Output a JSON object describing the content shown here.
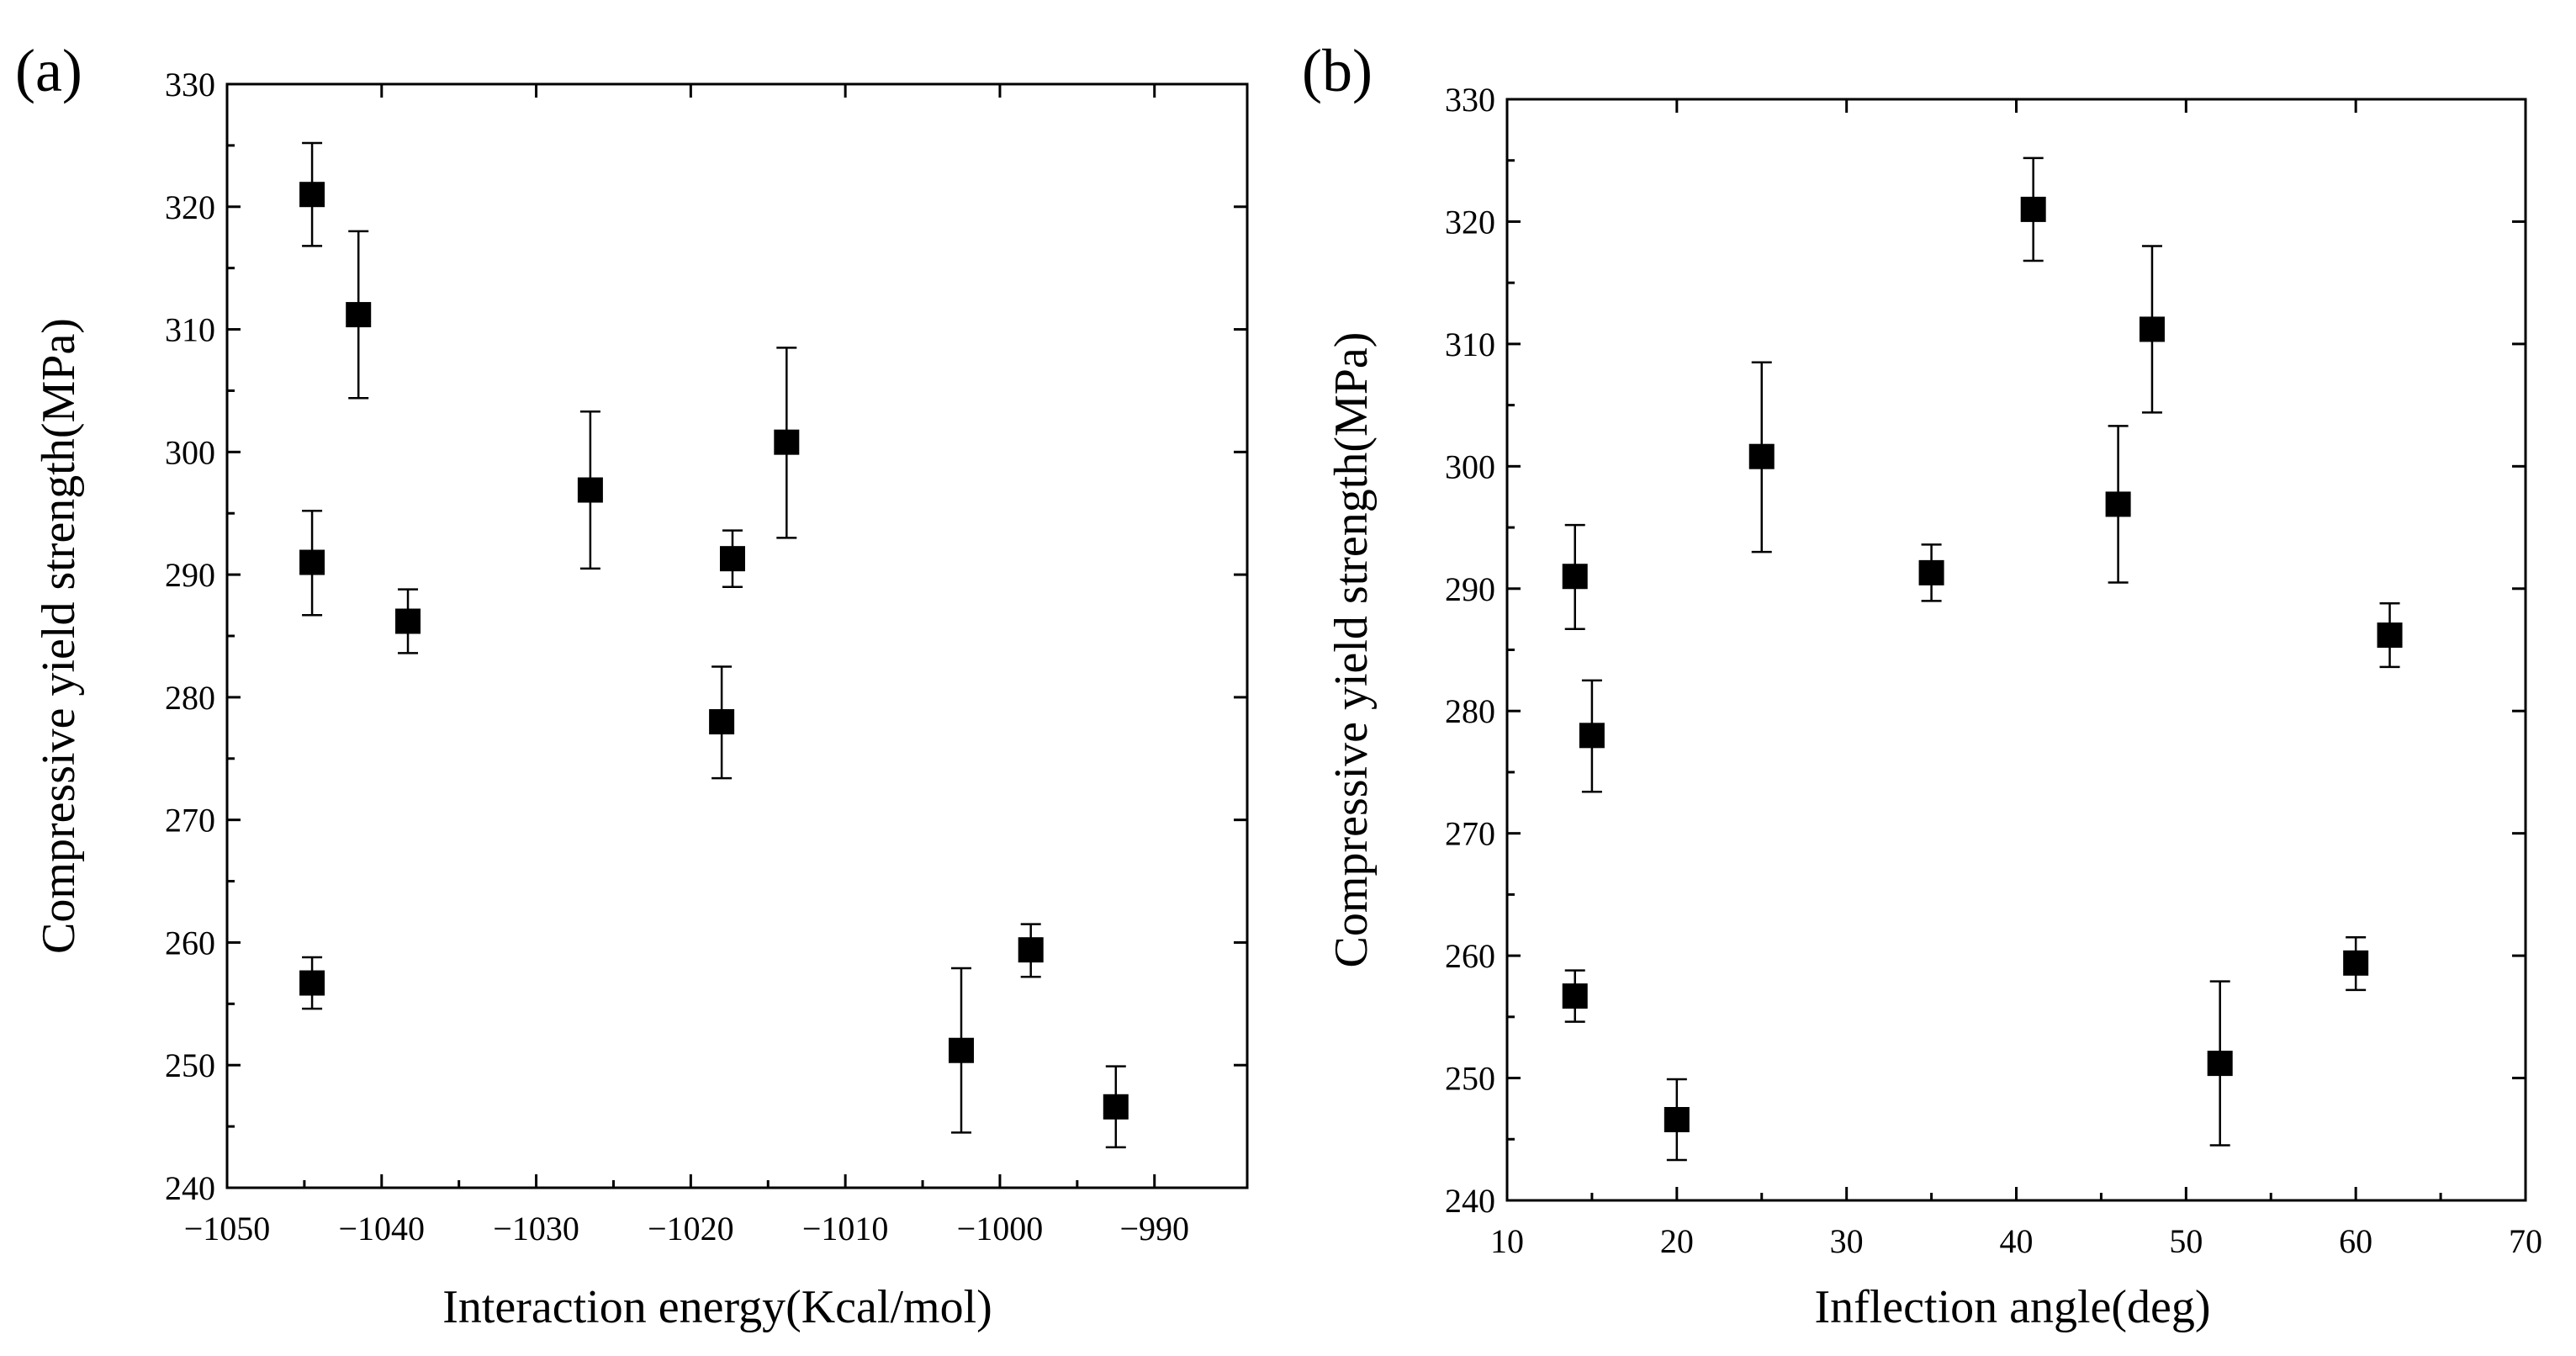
{
  "chart_data": [
    {
      "type": "scatter",
      "panel_label": "(a)",
      "xlabel": "Interaction energy(Kcal/mol)",
      "ylabel": "Compressive yield strength(MPa)",
      "xlim": [
        -1050,
        -984
      ],
      "ylim": [
        240,
        330
      ],
      "xticks": [
        -1050,
        -1040,
        -1030,
        -1020,
        -1010,
        -1000,
        -990
      ],
      "xtick_labels": [
        "−1050",
        "−1040",
        "−1030",
        "−1020",
        "−1010",
        "−1000",
        "−990"
      ],
      "yticks": [
        240,
        250,
        260,
        270,
        280,
        290,
        300,
        310,
        320,
        330
      ],
      "ytick_labels": [
        "240",
        "250",
        "260",
        "270",
        "280",
        "290",
        "300",
        "310",
        "320",
        "330"
      ],
      "grid": false,
      "marker": "square",
      "points": [
        {
          "x": -1044.5,
          "y": 321.0,
          "err_low": 316.8,
          "err_high": 325.2
        },
        {
          "x": -1044.5,
          "y": 291.0,
          "err_low": 286.7,
          "err_high": 295.2
        },
        {
          "x": -1044.5,
          "y": 256.7,
          "err_low": 254.6,
          "err_high": 258.8
        },
        {
          "x": -1041.5,
          "y": 311.2,
          "err_low": 304.4,
          "err_high": 318.0
        },
        {
          "x": -1038.3,
          "y": 286.2,
          "err_low": 283.6,
          "err_high": 288.8
        },
        {
          "x": -1026.5,
          "y": 296.9,
          "err_low": 290.5,
          "err_high": 303.3
        },
        {
          "x": -1017.3,
          "y": 291.3,
          "err_low": 289.0,
          "err_high": 293.6
        },
        {
          "x": -1018.0,
          "y": 278.0,
          "err_low": 273.4,
          "err_high": 282.5
        },
        {
          "x": -1013.8,
          "y": 300.8,
          "err_low": 293.0,
          "err_high": 308.5
        },
        {
          "x": -1002.5,
          "y": 251.2,
          "err_low": 244.5,
          "err_high": 257.9
        },
        {
          "x": -998.0,
          "y": 259.4,
          "err_low": 257.2,
          "err_high": 261.5
        },
        {
          "x": -992.5,
          "y": 246.6,
          "err_low": 243.3,
          "err_high": 249.9
        }
      ]
    },
    {
      "type": "scatter",
      "panel_label": "(b)",
      "xlabel": "Inflection angle(deg)",
      "ylabel": "Compressive yield strength(MPa)",
      "xlim": [
        10,
        70
      ],
      "ylim": [
        240,
        330
      ],
      "xticks": [
        10,
        20,
        30,
        40,
        50,
        60,
        70
      ],
      "xtick_labels": [
        "10",
        "20",
        "30",
        "40",
        "50",
        "60",
        "70"
      ],
      "yticks": [
        240,
        250,
        260,
        270,
        280,
        290,
        300,
        310,
        320,
        330
      ],
      "ytick_labels": [
        "240",
        "250",
        "260",
        "270",
        "280",
        "290",
        "300",
        "310",
        "320",
        "330"
      ],
      "grid": false,
      "marker": "square",
      "points": [
        {
          "x": 14,
          "y": 291.0,
          "err_low": 286.7,
          "err_high": 295.2
        },
        {
          "x": 14,
          "y": 256.7,
          "err_low": 254.6,
          "err_high": 258.8
        },
        {
          "x": 15,
          "y": 278.0,
          "err_low": 273.4,
          "err_high": 282.5
        },
        {
          "x": 20,
          "y": 246.6,
          "err_low": 243.3,
          "err_high": 249.9
        },
        {
          "x": 25,
          "y": 300.8,
          "err_low": 293.0,
          "err_high": 308.5
        },
        {
          "x": 35,
          "y": 291.3,
          "err_low": 289.0,
          "err_high": 293.6
        },
        {
          "x": 41,
          "y": 321.0,
          "err_low": 316.8,
          "err_high": 325.2
        },
        {
          "x": 46,
          "y": 296.9,
          "err_low": 290.5,
          "err_high": 303.3
        },
        {
          "x": 48,
          "y": 311.2,
          "err_low": 304.4,
          "err_high": 318.0
        },
        {
          "x": 52,
          "y": 251.2,
          "err_low": 244.5,
          "err_high": 257.9
        },
        {
          "x": 60,
          "y": 259.4,
          "err_low": 257.2,
          "err_high": 261.5
        },
        {
          "x": 62,
          "y": 286.2,
          "err_low": 283.6,
          "err_high": 288.8
        }
      ]
    }
  ]
}
